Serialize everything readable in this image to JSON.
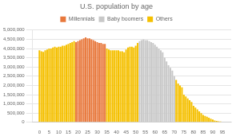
{
  "chart_data": {
    "type": "bar",
    "title": "U.S. population by age",
    "x": [
      0,
      1,
      2,
      3,
      4,
      5,
      6,
      7,
      8,
      9,
      10,
      11,
      12,
      13,
      14,
      15,
      16,
      17,
      18,
      19,
      20,
      21,
      22,
      23,
      24,
      25,
      26,
      27,
      28,
      29,
      30,
      31,
      32,
      33,
      34,
      35,
      36,
      37,
      38,
      39,
      40,
      41,
      42,
      43,
      44,
      45,
      46,
      47,
      48,
      49,
      50,
      51,
      52,
      53,
      54,
      55,
      56,
      57,
      58,
      59,
      60,
      61,
      62,
      63,
      64,
      65,
      66,
      67,
      68,
      69,
      70,
      71,
      72,
      73,
      74,
      75,
      76,
      77,
      78,
      79,
      80,
      81,
      82,
      83,
      84,
      85,
      86,
      87,
      88,
      89,
      90,
      91,
      92,
      93,
      94,
      95
    ],
    "series": [
      {
        "name": "Millennials",
        "color": "#e8783c",
        "values": [
          null,
          null,
          null,
          null,
          null,
          null,
          null,
          null,
          null,
          null,
          null,
          null,
          null,
          null,
          null,
          null,
          null,
          null,
          null,
          4350000,
          4400000,
          4450000,
          4500000,
          4550000,
          4600000,
          4550000,
          4550000,
          4500000,
          4450000,
          4400000,
          4350000,
          4300000,
          4300000,
          4250000,
          4250000,
          null,
          null,
          null,
          null,
          null,
          null,
          null,
          null,
          null,
          null,
          null,
          null,
          null,
          null,
          null,
          null,
          null,
          null,
          null,
          null,
          null,
          null,
          null,
          null,
          null,
          null,
          null,
          null,
          null,
          null,
          null,
          null,
          null,
          null,
          null,
          null,
          null,
          null,
          null,
          null,
          null,
          null,
          null,
          null,
          null,
          null,
          null,
          null,
          null,
          null,
          null,
          null,
          null,
          null,
          null,
          null,
          null,
          null,
          null,
          null,
          null
        ]
      },
      {
        "name": "Baby boomers",
        "color": "#c8c8c8",
        "values": [
          null,
          null,
          null,
          null,
          null,
          null,
          null,
          null,
          null,
          null,
          null,
          null,
          null,
          null,
          null,
          null,
          null,
          null,
          null,
          null,
          null,
          null,
          null,
          null,
          null,
          null,
          null,
          null,
          null,
          null,
          null,
          null,
          null,
          null,
          null,
          null,
          null,
          null,
          null,
          null,
          null,
          null,
          null,
          null,
          null,
          null,
          null,
          null,
          null,
          null,
          null,
          null,
          4400000,
          4450000,
          4500000,
          4450000,
          4450000,
          4400000,
          4350000,
          4300000,
          4200000,
          4100000,
          4000000,
          3900000,
          3800000,
          3500000,
          3300000,
          3100000,
          2950000,
          2800000,
          2500000,
          null,
          null,
          null,
          null,
          null,
          null,
          null,
          null,
          null,
          null,
          null,
          null,
          null,
          null,
          null,
          null,
          null,
          null,
          null,
          null,
          null,
          null,
          null,
          null,
          null
        ]
      },
      {
        "name": "Others",
        "color": "#f5c000",
        "values": [
          3900000,
          3850000,
          3820000,
          3900000,
          3950000,
          4000000,
          4000000,
          4050000,
          4100000,
          4050000,
          4100000,
          4100000,
          4150000,
          4150000,
          4200000,
          4250000,
          4300000,
          4350000,
          4400000,
          null,
          null,
          null,
          null,
          null,
          null,
          null,
          null,
          null,
          null,
          null,
          null,
          null,
          null,
          null,
          null,
          4000000,
          3950000,
          3900000,
          3900000,
          3900000,
          3900000,
          3900000,
          3850000,
          3850000,
          3800000,
          3950000,
          4050000,
          4100000,
          4100000,
          4050000,
          4150000,
          4300000,
          null,
          null,
          null,
          null,
          null,
          null,
          null,
          null,
          null,
          null,
          null,
          null,
          null,
          null,
          null,
          null,
          null,
          null,
          null,
          2300000,
          2100000,
          2000000,
          1900000,
          1500000,
          1400000,
          1300000,
          1200000,
          1100000,
          900000,
          800000,
          700000,
          600000,
          500000,
          400000,
          350000,
          300000,
          250000,
          200000,
          150000,
          100000,
          80000,
          60000,
          40000,
          20000
        ]
      }
    ],
    "xlim": [
      -1,
      97
    ],
    "xticks": [
      0,
      5,
      10,
      15,
      20,
      25,
      30,
      35,
      40,
      45,
      50,
      55,
      60,
      65,
      70,
      75,
      80,
      85,
      90,
      95
    ],
    "ylim": [
      0,
      5000000
    ],
    "yticks": [
      0,
      {
        "value": 500000,
        "label": "500,000"
      },
      {
        "value": 1000000,
        "label": "1,000,000"
      },
      {
        "value": 1500000,
        "label": "1,500,000"
      },
      {
        "value": 2000000,
        "label": "2,000,000"
      },
      {
        "value": 2500000,
        "label": "2,500,000"
      },
      {
        "value": 3000000,
        "label": "3,000,000"
      },
      {
        "value": 3500000,
        "label": "3,500,000"
      },
      {
        "value": 4000000,
        "label": "4,000,000"
      },
      {
        "value": 4500000,
        "label": "4,500,000"
      },
      {
        "value": 5000000,
        "label": "5,000,000"
      }
    ],
    "grid": true
  }
}
